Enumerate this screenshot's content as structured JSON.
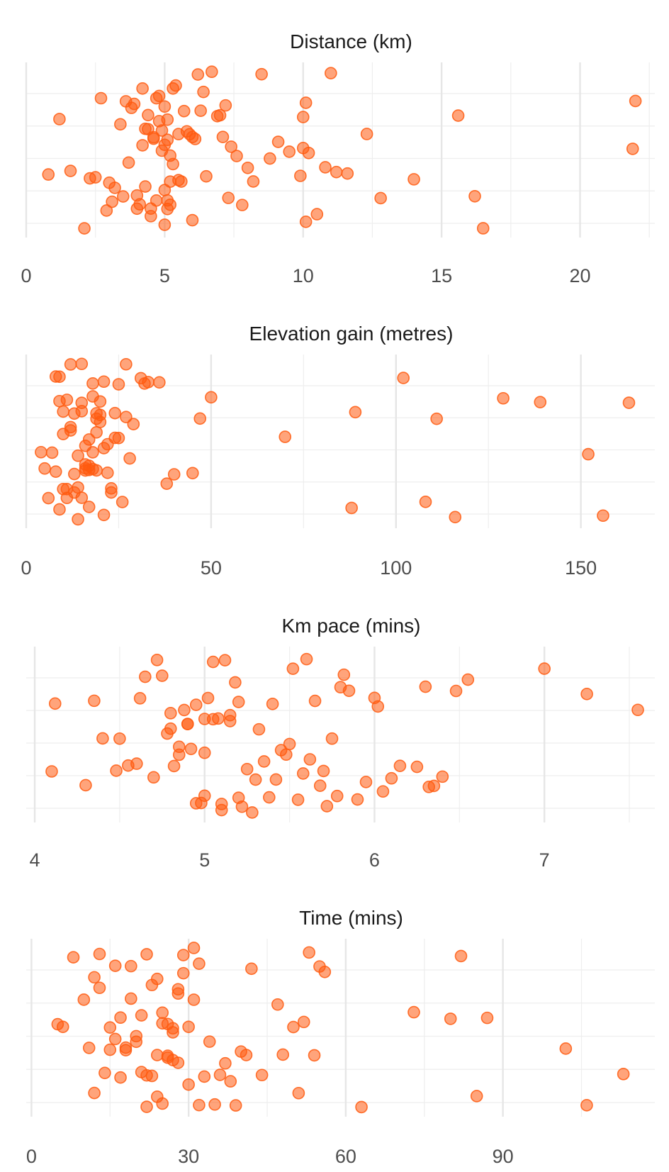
{
  "chart_data": [
    {
      "type": "scatter",
      "title": "Distance (km)",
      "xlim": [
        0,
        22.7
      ],
      "x_ticks": [
        0,
        5,
        10,
        15,
        20
      ],
      "x_tick_labels": [
        "0",
        "5",
        "10",
        "15",
        "20"
      ],
      "grid": true,
      "point_color": "#ff5a0f",
      "values": [
        0.8,
        1.2,
        1.6,
        2.1,
        2.3,
        2.5,
        2.7,
        2.9,
        3.0,
        3.1,
        3.2,
        3.4,
        3.5,
        3.6,
        3.7,
        3.8,
        3.9,
        4.0,
        4.0,
        4.1,
        4.2,
        4.2,
        4.3,
        4.3,
        4.4,
        4.4,
        4.5,
        4.5,
        4.6,
        4.6,
        4.7,
        4.7,
        4.8,
        4.8,
        4.9,
        4.9,
        5.0,
        5.0,
        5.0,
        5.0,
        5.1,
        5.1,
        5.1,
        5.1,
        5.2,
        5.2,
        5.2,
        5.3,
        5.3,
        5.4,
        5.5,
        5.5,
        5.6,
        5.7,
        5.8,
        5.9,
        6.0,
        6.0,
        6.1,
        6.2,
        6.3,
        6.4,
        6.5,
        6.7,
        6.9,
        7.0,
        7.1,
        7.2,
        7.3,
        7.4,
        7.6,
        7.8,
        8.0,
        8.2,
        8.5,
        8.8,
        9.1,
        9.5,
        9.9,
        10.0,
        10.0,
        10.1,
        10.1,
        10.2,
        10.5,
        10.8,
        11.0,
        11.2,
        11.6,
        12.3,
        12.8,
        14.0,
        15.6,
        16.2,
        16.5,
        21.9,
        22.0
      ],
      "x_unit": "km"
    },
    {
      "type": "scatter",
      "title": "Elevation gain (metres)",
      "xlim": [
        0,
        170
      ],
      "x_ticks": [
        0,
        50,
        100,
        150
      ],
      "x_tick_labels": [
        "0",
        "50",
        "100",
        "150"
      ],
      "grid": true,
      "point_color": "#ff5a0f",
      "values": [
        4,
        5,
        6,
        7,
        8,
        8,
        9,
        9,
        9,
        10,
        10,
        10,
        11,
        11,
        11,
        12,
        12,
        12,
        13,
        13,
        13,
        14,
        14,
        14,
        15,
        15,
        15,
        15,
        16,
        16,
        16,
        16,
        17,
        17,
        17,
        17,
        18,
        18,
        18,
        18,
        19,
        19,
        19,
        19,
        20,
        20,
        20,
        21,
        21,
        21,
        22,
        22,
        23,
        23,
        24,
        24,
        25,
        25,
        26,
        27,
        27,
        28,
        29,
        31,
        32,
        33,
        36,
        38,
        40,
        45,
        47,
        50,
        70,
        88,
        89,
        102,
        108,
        111,
        116,
        129,
        139,
        152,
        156,
        163
      ],
      "x_unit": "metres"
    },
    {
      "type": "scatter",
      "title": "Km pace (mins)",
      "xlim": [
        3.95,
        7.65
      ],
      "x_ticks": [
        4,
        5,
        6,
        7
      ],
      "x_tick_labels": [
        "4",
        "5",
        "6",
        "7"
      ],
      "grid": true,
      "point_color": "#ff5a0f",
      "values": [
        4.1,
        4.12,
        4.3,
        4.35,
        4.4,
        4.48,
        4.5,
        4.55,
        4.6,
        4.62,
        4.65,
        4.7,
        4.72,
        4.75,
        4.78,
        4.8,
        4.8,
        4.82,
        4.85,
        4.85,
        4.88,
        4.9,
        4.9,
        4.92,
        4.95,
        4.95,
        4.98,
        5.0,
        5.0,
        5.0,
        5.02,
        5.05,
        5.05,
        5.08,
        5.1,
        5.1,
        5.12,
        5.15,
        5.15,
        5.18,
        5.2,
        5.2,
        5.22,
        5.25,
        5.28,
        5.3,
        5.32,
        5.35,
        5.38,
        5.4,
        5.42,
        5.45,
        5.48,
        5.5,
        5.52,
        5.55,
        5.58,
        5.6,
        5.62,
        5.65,
        5.68,
        5.7,
        5.72,
        5.75,
        5.78,
        5.8,
        5.82,
        5.85,
        5.9,
        5.95,
        6.0,
        6.02,
        6.05,
        6.1,
        6.15,
        6.25,
        6.3,
        6.32,
        6.35,
        6.4,
        6.48,
        6.55,
        7.0,
        7.25,
        7.55
      ],
      "x_unit": "mins"
    },
    {
      "type": "scatter",
      "title": "Time (mins)",
      "xlim": [
        -1,
        119
      ],
      "x_ticks": [
        0,
        30,
        60,
        90
      ],
      "x_tick_labels": [
        "0",
        "30",
        "60",
        "90"
      ],
      "grid": true,
      "point_color": "#ff5a0f",
      "values": [
        5,
        6,
        8,
        10,
        11,
        12,
        12,
        13,
        13,
        14,
        15,
        15,
        16,
        16,
        17,
        17,
        18,
        18,
        19,
        19,
        20,
        20,
        21,
        21,
        22,
        22,
        22,
        23,
        23,
        24,
        24,
        24,
        25,
        25,
        25,
        26,
        26,
        26,
        27,
        27,
        27,
        28,
        28,
        28,
        29,
        29,
        30,
        30,
        31,
        31,
        32,
        32,
        33,
        34,
        35,
        36,
        37,
        38,
        39,
        40,
        41,
        42,
        44,
        47,
        48,
        50,
        51,
        52,
        53,
        54,
        55,
        56,
        63,
        73,
        80,
        82,
        85,
        87,
        102,
        106,
        113
      ],
      "x_unit": "mins"
    }
  ]
}
